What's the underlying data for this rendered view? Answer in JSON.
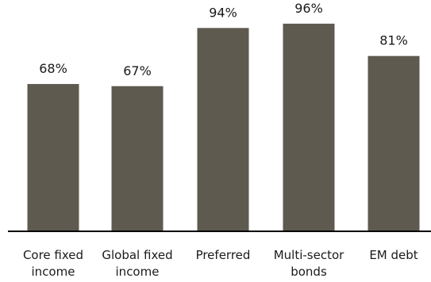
{
  "chart_data": {
    "type": "bar",
    "categories": [
      "Core fixed income",
      "Global fixed income",
      "Preferred",
      "Multi-sector bonds",
      "EM debt"
    ],
    "values": [
      68,
      67,
      94,
      96,
      81
    ],
    "data_labels": [
      "68%",
      "67%",
      "94%",
      "96%",
      "81%"
    ],
    "title": "",
    "xlabel": "",
    "ylabel": "",
    "ylim": [
      0,
      100
    ],
    "grid": false,
    "bar_color": "#5e5a4f",
    "axis_color": "#000000"
  }
}
